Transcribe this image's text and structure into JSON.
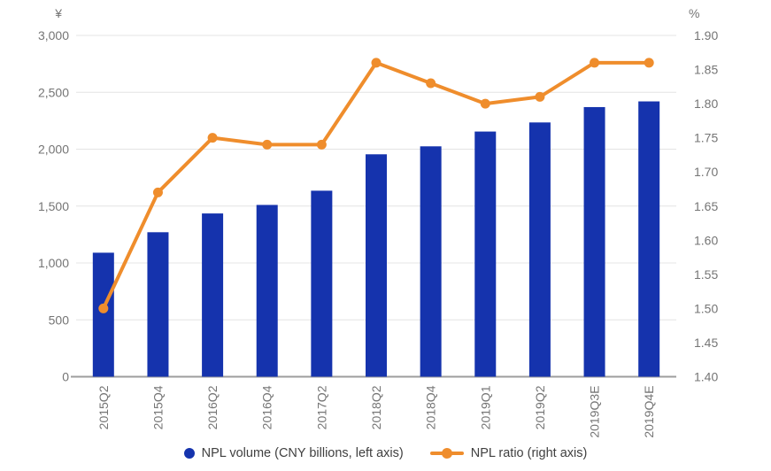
{
  "chart_data": {
    "type": "combo (bar + line)",
    "title": "",
    "categories": [
      "2015Q2",
      "2015Q4",
      "2016Q2",
      "2016Q4",
      "2017Q2",
      "2018Q2",
      "2018Q4",
      "2019Q1",
      "2019Q2",
      "2019Q3E",
      "2019Q4E"
    ],
    "series": [
      {
        "name": "NPL volume (CNY billions, left axis)",
        "type": "bar",
        "axis": "left",
        "color": "#1533AD",
        "values": [
          1090,
          1270,
          1435,
          1510,
          1635,
          1955,
          2025,
          2155,
          2235,
          2370,
          2420
        ]
      },
      {
        "name": "NPL ratio (right axis)",
        "type": "line",
        "axis": "right",
        "color": "#EF8D2C",
        "values": [
          1.5,
          1.67,
          1.75,
          1.74,
          1.74,
          1.86,
          1.83,
          1.8,
          1.81,
          1.86,
          1.86
        ]
      }
    ],
    "left_axis": {
      "unit": "¥",
      "min": 0,
      "max": 3000,
      "tick_step": 500,
      "tick_labels": [
        "3,000",
        "2,500",
        "2,000",
        "1,500",
        "1,000",
        "500",
        "0"
      ]
    },
    "right_axis": {
      "unit": "%",
      "min": 1.4,
      "max": 1.9,
      "tick_step": 0.05,
      "tick_labels": [
        "1.90",
        "1.85",
        "1.80",
        "1.75",
        "1.70",
        "1.65",
        "1.60",
        "1.55",
        "1.50",
        "1.45",
        "1.40"
      ]
    },
    "grid": true,
    "legend_position": "bottom"
  },
  "colors": {
    "grid": "#E4E4E4",
    "axis_line": "#9E9E9E",
    "tick_text": "#757575",
    "legend_text": "#404040",
    "background": "#FFFFFF"
  }
}
